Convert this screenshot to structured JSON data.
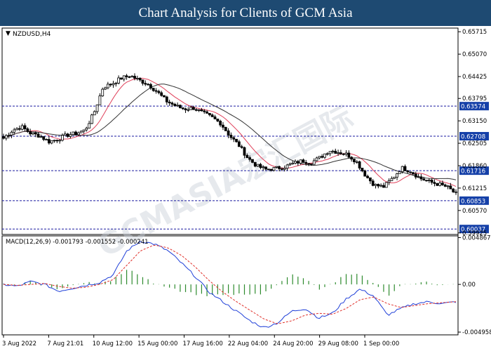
{
  "page_title": "Chart Analysis for Clients of GCM Asia",
  "watermark": "GCMASIA宏汇国际",
  "chart_data": [
    {
      "type": "candlestick",
      "title": "NZDUSD,H4",
      "ylim": [
        0.5992,
        0.6578
      ],
      "yticks": [
        "0.65715",
        "0.65070",
        "0.64425",
        "0.63795",
        "0.63150",
        "0.62505",
        "0.61860",
        "0.61215",
        "0.60570",
        "0.59925"
      ],
      "xticks": [
        "3 Aug 2022",
        "7 Aug 21:01",
        "10 Aug 12:00",
        "15 Aug 00:00",
        "17 Aug 16:00",
        "22 Aug 04:00",
        "24 Aug 20:00",
        "29 Aug 08:00",
        "1 Sep 00:00"
      ],
      "levels": [
        {
          "value": 0.63574,
          "label": "0.63574"
        },
        {
          "value": 0.62708,
          "label": "0.62708"
        },
        {
          "value": 0.61716,
          "label": "0.61716"
        },
        {
          "value": 0.60853,
          "label": "0.60853"
        },
        {
          "value": 0.60037,
          "label": "0.60037"
        }
      ],
      "close_anchors": [
        0.6265,
        0.6288,
        0.6298,
        0.6279,
        0.6272,
        0.6255,
        0.6262,
        0.6274,
        0.6279,
        0.6288,
        0.6338,
        0.6412,
        0.6422,
        0.6438,
        0.6445,
        0.6432,
        0.642,
        0.6398,
        0.6372,
        0.6358,
        0.6349,
        0.6352,
        0.6338,
        0.6325,
        0.6308,
        0.6272,
        0.6245,
        0.6208,
        0.6185,
        0.6175,
        0.6178,
        0.6182,
        0.6192,
        0.62,
        0.6195,
        0.621,
        0.623,
        0.6225,
        0.6218,
        0.6198,
        0.6158,
        0.613,
        0.6125,
        0.615,
        0.618,
        0.617,
        0.615,
        0.614,
        0.6133,
        0.6125,
        0.6105
      ],
      "series": [
        {
          "name": "MA fast",
          "color": "#e0405a"
        },
        {
          "name": "MA slow",
          "color": "#333333"
        }
      ]
    },
    {
      "type": "macd",
      "title": "MACD(12,26,9) -0.001793 -0.001552 -0.000241",
      "ylim": [
        -0.0051,
        0.0049
      ],
      "yticks": [
        {
          "value": 0.004867,
          "label": "0.004867"
        },
        {
          "value": 0.0,
          "label": "0.00"
        },
        {
          "value": -0.004958,
          "label": "-0.004958"
        }
      ],
      "main_anchors": [
        0.0,
        -0.0002,
        0.0003,
        0.0,
        -0.0007,
        -0.0004,
        -0.0001,
        0.0002,
        0.001,
        0.0035,
        0.0045,
        0.0042,
        0.0035,
        0.0022,
        0.0008,
        -0.0008,
        -0.0018,
        -0.0028,
        -0.0038,
        -0.0045,
        -0.004,
        -0.0028,
        -0.0025,
        -0.0035,
        -0.003,
        -0.0015,
        -0.0005,
        -0.0012,
        -0.0032,
        -0.0025,
        -0.002,
        -0.0018,
        -0.002,
        -0.0018
      ],
      "signal_anchors": [
        0.0,
        -0.0001,
        0.0,
        0.0001,
        -0.0002,
        -0.0004,
        -0.0003,
        0.0,
        0.0005,
        0.002,
        0.0035,
        0.0041,
        0.0038,
        0.003,
        0.0018,
        0.0004,
        -0.0008,
        -0.0018,
        -0.0027,
        -0.0036,
        -0.0041,
        -0.0038,
        -0.0032,
        -0.003,
        -0.0031,
        -0.0025,
        -0.0016,
        -0.0013,
        -0.002,
        -0.0024,
        -0.0022,
        -0.002,
        -0.0019,
        -0.0018
      ],
      "series": [
        {
          "name": "MACD",
          "color": "#1f3fd8"
        },
        {
          "name": "Signal",
          "color": "#e0302a"
        },
        {
          "name": "Histogram",
          "color": "#2e8b2e"
        }
      ]
    }
  ]
}
